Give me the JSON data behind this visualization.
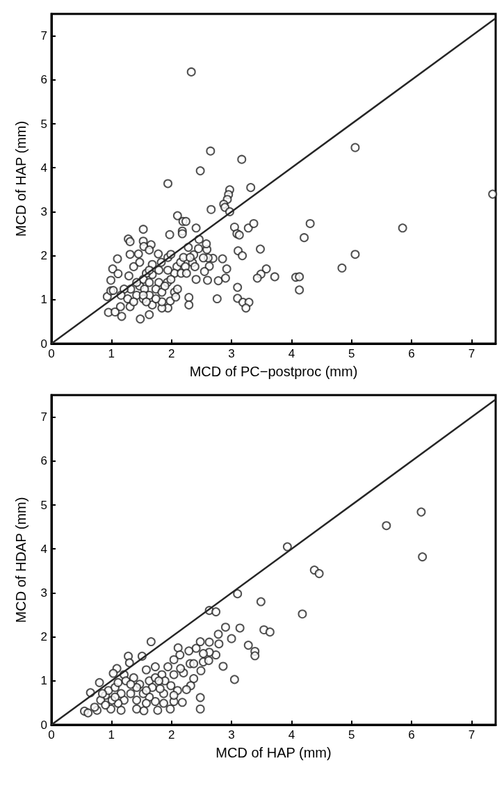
{
  "chart_data": [
    {
      "type": "scatter",
      "xlabel": "MCD of PC−postproc (mm)",
      "ylabel": "MCD of HAP (mm)",
      "xlim": [
        0,
        7.4
      ],
      "ylim": [
        0,
        7.5
      ],
      "xticks": [
        0,
        1,
        2,
        3,
        4,
        5,
        6,
        7
      ],
      "yticks": [
        0,
        1,
        2,
        3,
        4,
        5,
        6,
        7
      ],
      "series": [
        {
          "marker": "circle",
          "color": "#262626",
          "x": [
            2.33,
            2.65,
            3.17,
            2.48,
            1.94,
            2.97,
            2.95,
            2.93,
            3.32,
            5.06,
            7.35,
            2.87,
            2.89,
            2.97,
            2.66,
            2.1,
            2.19,
            2.24,
            2.18,
            2.18,
            2.41,
            1.97,
            1.53,
            1.28,
            1.31,
            1.53,
            1.54,
            1.66,
            1.63,
            1.31,
            1.45,
            1.78,
            1.1,
            3.05,
            3.09,
            3.13,
            3.28,
            3.37,
            4.31,
            4.21,
            5.85,
            3.11,
            3.18,
            3.48,
            5.06,
            4.84,
            3.58,
            3.49,
            3.43,
            3.72,
            4.07,
            4.13,
            4.13,
            3.1,
            3.1,
            3.19,
            3.29,
            3.24,
            2.76,
            2.78,
            2.9,
            2.92,
            2.85,
            2.69,
            2.61,
            2.6,
            2.41,
            2.53,
            2.63,
            2.55,
            2.59,
            2.58,
            2.46,
            2.45,
            2.37,
            2.28,
            2.35,
            2.39,
            2.29,
            2.29,
            1.94,
            1.84,
            1.98,
            1.63,
            1.48,
            0.95,
            1.06,
            1.17,
            1.15,
            1.31,
            0.93,
            0.99,
            1.03,
            0.99,
            1.02,
            1.11,
            1.29,
            1.37,
            1.47,
            1.68,
            1.83,
            1.94,
            1.99,
            2.09,
            2.15,
            2.23,
            2.05,
            2.16,
            2.25,
            1.93,
            1.79,
            1.68,
            1.58,
            1.53,
            1.47,
            1.55,
            1.42,
            1.32,
            1.21,
            1.16,
            1.27,
            1.37,
            1.53,
            1.63,
            1.68,
            1.74,
            1.84,
            1.89,
            2.05,
            2.1,
            2.07,
            1.84,
            1.74,
            1.63,
            1.53,
            1.58,
            1.42,
            1.63,
            1.79,
            1.94,
            1.99,
            2.2,
            2.31
          ],
          "values": [
            6.18,
            4.38,
            4.19,
            3.93,
            3.64,
            3.5,
            3.39,
            3.28,
            3.55,
            4.46,
            3.4,
            3.17,
            3.1,
            3.0,
            3.05,
            2.91,
            2.78,
            2.78,
            2.56,
            2.5,
            2.63,
            2.48,
            2.6,
            2.38,
            2.32,
            2.33,
            2.21,
            2.25,
            2.13,
            2.03,
            2.04,
            2.04,
            1.93,
            2.65,
            2.5,
            2.47,
            2.63,
            2.73,
            2.73,
            2.41,
            2.63,
            2.11,
            2.0,
            2.15,
            2.03,
            1.72,
            1.7,
            1.58,
            1.49,
            1.52,
            1.51,
            1.52,
            1.22,
            1.28,
            1.03,
            0.94,
            0.94,
            0.81,
            1.02,
            1.43,
            1.49,
            1.7,
            1.93,
            1.94,
            1.95,
            1.44,
            1.46,
            1.95,
            1.76,
            1.64,
            2.14,
            2.27,
            2.37,
            2.16,
            2.02,
            2.19,
            1.84,
            1.75,
            1.05,
            0.88,
            0.81,
            0.81,
            0.97,
            0.66,
            0.56,
            0.71,
            0.72,
            0.62,
            0.84,
            0.84,
            1.07,
            1.2,
            1.21,
            1.44,
            1.7,
            1.59,
            1.54,
            1.75,
            1.85,
            1.8,
            1.85,
            1.96,
            2.03,
            1.75,
            1.85,
            1.75,
            1.6,
            1.6,
            1.6,
            1.39,
            1.39,
            1.57,
            1.6,
            1.46,
            1.31,
            1.24,
            1.1,
            1.24,
            1.24,
            1.1,
            1.02,
            0.95,
            1.02,
            1.1,
            0.88,
            1.24,
            1.17,
            1.31,
            1.17,
            1.24,
            1.06,
            0.95,
            1.02,
            1.39,
            1.1,
            0.95,
            1.39,
            1.67,
            1.67,
            1.67,
            1.46,
            1.96,
            1.96
          ]
        },
        {
          "type": "line",
          "color": "#262626",
          "x": [
            0,
            7.4
          ],
          "values": [
            0,
            7.4
          ]
        }
      ]
    },
    {
      "type": "scatter",
      "xlabel": "MCD of HAP (mm)",
      "ylabel": "MCD of HDAP (mm)",
      "xlim": [
        0,
        7.4
      ],
      "ylim": [
        0,
        7.5
      ],
      "xticks": [
        0,
        1,
        2,
        3,
        4,
        5,
        6,
        7
      ],
      "yticks": [
        0,
        1,
        2,
        3,
        4,
        5,
        6,
        7
      ],
      "series": [
        {
          "marker": "circle",
          "color": "#262626",
          "x": [
            6.16,
            5.58,
            6.18,
            3.93,
            4.38,
            4.46,
            4.18,
            3.1,
            3.49,
            2.63,
            2.74,
            2.9,
            3.14,
            3.54,
            3.64,
            2.78,
            3.0,
            3.28,
            3.39,
            3.39,
            2.79,
            2.74,
            2.86,
            3.05,
            2.48,
            2.63,
            2.41,
            2.29,
            2.11,
            2.14,
            2.04,
            1.66,
            1.28,
            1.51,
            1.3,
            1.09,
            1.03,
            0.8,
            0.65,
            0.55,
            0.61,
            0.76,
            0.72,
            0.99,
            1.16,
            1.42,
            1.54,
            1.77,
            1.98,
            2.18,
            2.04,
            2.48,
            2.48,
            2.37,
            2.32,
            2.25,
            2.49,
            2.53,
            2.62,
            2.63,
            2.53,
            2.31,
            2.37,
            2.2,
            2.15,
            2.04,
            1.94,
            1.73,
            1.58,
            1.84,
            1.89,
            1.99,
            2.1,
            2.04,
            1.87,
            1.87,
            1.73,
            1.63,
            1.53,
            1.42,
            1.32,
            1.21,
            1.11,
            1.01,
            0.9,
            0.82,
            0.95,
            1.06,
            1.21,
            1.24,
            1.37,
            1.47,
            1.63,
            1.73,
            1.68,
            1.58,
            1.42,
            1.32,
            1.16,
            1.06,
            0.9,
            1.58,
            1.79,
            1.81,
            1.11,
            0.85
          ],
          "values": [
            4.84,
            4.53,
            3.82,
            4.05,
            3.52,
            3.44,
            2.52,
            2.98,
            2.8,
            2.6,
            2.57,
            2.22,
            2.2,
            2.16,
            2.11,
            2.06,
            1.96,
            1.81,
            1.67,
            1.57,
            1.84,
            1.59,
            1.33,
            1.03,
            1.89,
            1.88,
            1.74,
            1.68,
            1.75,
            1.59,
            1.48,
            1.89,
            1.56,
            1.56,
            1.41,
            1.28,
            1.17,
            0.96,
            0.73,
            0.31,
            0.27,
            0.33,
            0.4,
            0.36,
            0.33,
            0.36,
            0.32,
            0.33,
            0.36,
            0.51,
            0.53,
            0.62,
            0.36,
            1.05,
            0.89,
            0.8,
            1.23,
            1.43,
            1.46,
            1.65,
            1.62,
            1.39,
            1.39,
            1.18,
            1.28,
            1.14,
            1.32,
            1.32,
            1.25,
            1.14,
            1.0,
            0.89,
            0.78,
            0.67,
            0.71,
            0.49,
            0.53,
            0.63,
            0.71,
            0.56,
            0.71,
            0.56,
            0.49,
            0.56,
            0.67,
            0.56,
            0.78,
            0.85,
            1.14,
            1.0,
            1.07,
            0.92,
            1.0,
            1.07,
            0.85,
            0.78,
            0.85,
            0.92,
            0.71,
            0.63,
            0.45,
            0.49,
            1.0,
            0.82,
            0.96,
            0.71
          ]
        },
        {
          "type": "line",
          "color": "#262626",
          "x": [
            0,
            7.4
          ],
          "values": [
            0,
            7.4
          ]
        }
      ]
    }
  ]
}
